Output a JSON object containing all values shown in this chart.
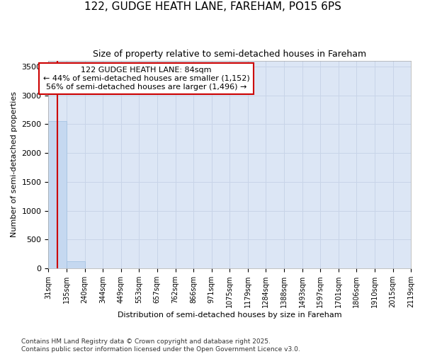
{
  "title_line1": "122, GUDGE HEATH LANE, FAREHAM, PO15 6PS",
  "title_line2": "Size of property relative to semi-detached houses in Fareham",
  "xlabel": "Distribution of semi-detached houses by size in Fareham",
  "ylabel": "Number of semi-detached properties",
  "footer_line1": "Contains HM Land Registry data © Crown copyright and database right 2025.",
  "footer_line2": "Contains public sector information licensed under the Open Government Licence v3.0.",
  "annotation_line1": "122 GUDGE HEATH LANE: 84sqm",
  "annotation_line2": "← 44% of semi-detached houses are smaller (1,152)",
  "annotation_line3": "56% of semi-detached houses are larger (1,496) →",
  "property_size": 84,
  "bin_edges": [
    31,
    135,
    240,
    344,
    449,
    553,
    657,
    762,
    866,
    971,
    1075,
    1179,
    1284,
    1388,
    1493,
    1597,
    1701,
    1806,
    1910,
    2015,
    2119
  ],
  "bar_heights": [
    2550,
    120,
    0,
    0,
    0,
    0,
    0,
    0,
    0,
    0,
    0,
    0,
    0,
    0,
    0,
    0,
    0,
    0,
    0,
    0
  ],
  "bar_color": "#c5d8f0",
  "bar_edgecolor": "#9dbfe0",
  "grid_color": "#c8d4e8",
  "background_color": "#dce6f5",
  "vline_color": "#cc0000",
  "annotation_box_edgecolor": "#cc0000",
  "ylim": [
    0,
    3600
  ],
  "yticks": [
    0,
    500,
    1000,
    1500,
    2000,
    2500,
    3000,
    3500
  ]
}
